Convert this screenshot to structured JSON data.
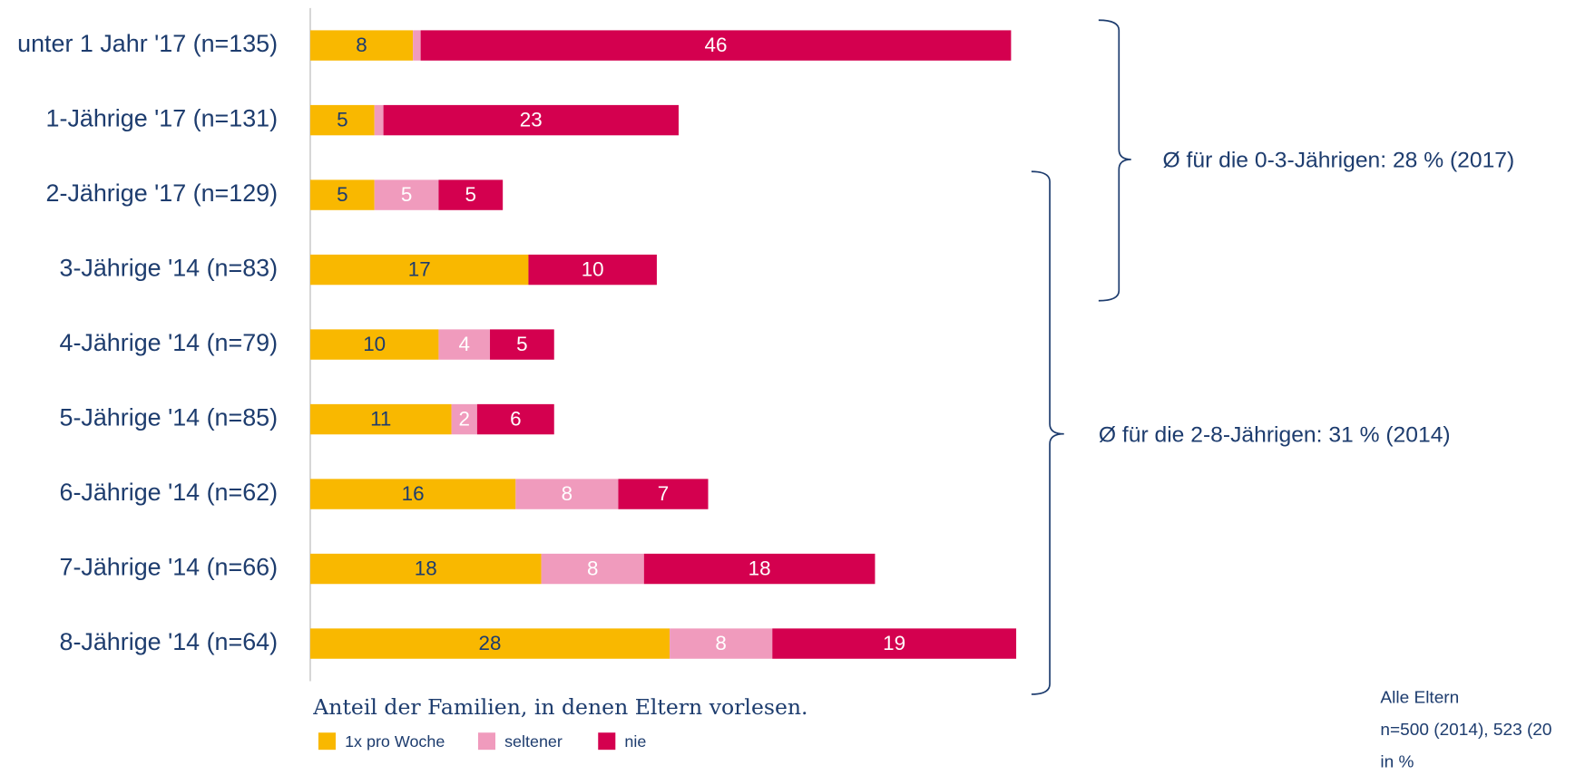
{
  "chart_data": {
    "type": "stacked-bar-horizontal",
    "categories": [
      "unter 1 Jahr '17 (n=135)",
      "1-Jährige '17 (n=131)",
      "2-Jährige '17 (n=129)",
      "3-Jährige '14 (n=83)",
      "4-Jährige '14 (n=79)",
      "5-Jährige '14 (n=85)",
      "6-Jährige '14 (n=62)",
      "7-Jährige '14 (n=66)",
      "8-Jährige '14 (n=64)"
    ],
    "series": [
      {
        "name": "1x pro Woche",
        "color": "#f9b800",
        "values": [
          8,
          5,
          5,
          17,
          10,
          11,
          16,
          18,
          28
        ]
      },
      {
        "name": "seltener",
        "color": "#f09bbd",
        "values": [
          0.6,
          0.7,
          5,
          null,
          4,
          2,
          8,
          8,
          8
        ],
        "value_labels": [
          null,
          null,
          "5",
          null,
          "4",
          "2",
          "8",
          "8",
          "8"
        ]
      },
      {
        "name": "nie",
        "color": "#d4004f",
        "values": [
          46,
          23,
          5,
          10,
          5,
          6,
          7,
          18,
          19
        ]
      }
    ],
    "xlim": [
      0,
      55
    ],
    "legend_title": "Anteil der Familien, in denen Eltern vorlesen.",
    "annotations": [
      "Ø für die 0-3-Jährigen: 28 % (2017)",
      "Ø für die 2-8-Jährigen: 31 % (2014)"
    ],
    "notes": [
      "Alle Eltern",
      "n=500 (2014), 523 (20",
      "in %"
    ]
  }
}
